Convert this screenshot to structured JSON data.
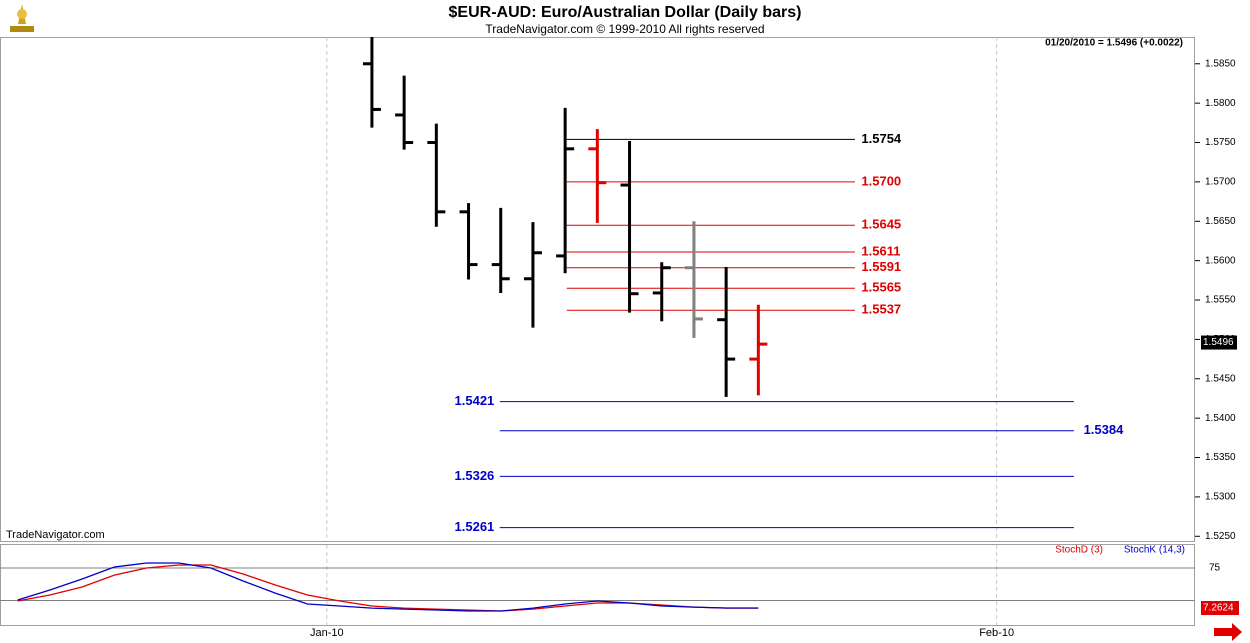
{
  "chart_data": {
    "type": "ohlc",
    "title": "$EUR-AUD:  Euro/Australian Dollar  (Daily bars)",
    "subtitle": "TradeNavigator.com © 1999-2010 All rights reserved",
    "watermark": "TradeNavigator.com",
    "info": "01/20/2010 = 1.5496 (+0.0022)",
    "last_price": 1.5496,
    "last_price_label": "1.5496",
    "xlim": [
      -11.55,
      25.56
    ],
    "xticks": [
      {
        "value": -1.4,
        "label": "Jan-10"
      },
      {
        "value": 19.4,
        "label": "Feb-10"
      }
    ],
    "ylim": [
      1.5244,
      1.5884
    ],
    "yticks": [
      {
        "value": 1.525,
        "label": "1.5250"
      },
      {
        "value": 1.53,
        "label": "1.5300"
      },
      {
        "value": 1.535,
        "label": "1.5350"
      },
      {
        "value": 1.54,
        "label": "1.5400"
      },
      {
        "value": 1.545,
        "label": "1.5450"
      },
      {
        "value": 1.55,
        "label": "1.5500"
      },
      {
        "value": 1.555,
        "label": "1.5550"
      },
      {
        "value": 1.56,
        "label": "1.5600"
      },
      {
        "value": 1.565,
        "label": "1.5650"
      },
      {
        "value": 1.57,
        "label": "1.5700"
      },
      {
        "value": 1.575,
        "label": "1.5750"
      },
      {
        "value": 1.58,
        "label": "1.5800"
      },
      {
        "value": 1.585,
        "label": "1.5850"
      }
    ],
    "bars": {
      "x": [
        0,
        1,
        2,
        3,
        4,
        5,
        6,
        7,
        8,
        9,
        10,
        11,
        12
      ],
      "open": [
        1.585,
        1.5785,
        1.575,
        1.5662,
        1.5595,
        1.5577,
        1.5606,
        1.5742,
        1.5696,
        1.5559,
        1.5591,
        1.5525,
        1.5475
      ],
      "high": [
        1.5884,
        1.5835,
        1.5774,
        1.5673,
        1.5667,
        1.5649,
        1.5794,
        1.5767,
        1.5752,
        1.5598,
        1.565,
        1.5592,
        1.5544
      ],
      "low": [
        1.5769,
        1.5741,
        1.5643,
        1.5576,
        1.5559,
        1.5515,
        1.5584,
        1.5648,
        1.5534,
        1.5523,
        1.5502,
        1.5427,
        1.5429
      ],
      "close": [
        1.5792,
        1.575,
        1.5662,
        1.5595,
        1.5577,
        1.561,
        1.5742,
        1.5699,
        1.5558,
        1.5591,
        1.5526,
        1.5475,
        1.5494
      ],
      "colors": [
        "#000000",
        "#000000",
        "#000000",
        "#000000",
        "#000000",
        "#000000",
        "#000000",
        "#e00000",
        "#000000",
        "#000000",
        "#808080",
        "#000000",
        "#e00000"
      ]
    },
    "resistance_levels": [
      {
        "values": [
          1.5754
        ],
        "value_labels": [
          "1.5754"
        ],
        "color": "#000000"
      },
      {
        "values": [
          1.57,
          1.5645,
          1.5611,
          1.5591,
          1.5565,
          1.5537
        ],
        "value_labels": [
          "1.5700",
          "1.5645",
          "1.5611",
          "1.5591",
          "1.5565",
          "1.5537"
        ],
        "color": "#e00000"
      }
    ],
    "support_levels": {
      "values": [
        1.5421,
        1.5384,
        1.5326,
        1.5261
      ],
      "value_labels": [
        "1.5421",
        "1.5384",
        "1.5326",
        "1.5261"
      ],
      "color": "#0000c8"
    },
    "stochastic": {
      "x": [
        -11,
        -10,
        -9,
        -8,
        -7,
        -6,
        -5,
        -4,
        -3,
        -2,
        -1,
        0,
        1,
        2,
        3,
        4,
        5,
        6,
        7,
        8,
        9,
        10,
        11,
        12
      ],
      "ylim": [
        -21.5,
        114
      ],
      "yticks": [
        75
      ],
      "reference_lines": [
        20
      ],
      "last_value": 7.2624,
      "last_label": "7.2624",
      "series": [
        {
          "name": "StochD (3)",
          "color": "#e00000",
          "values": [
            19.1,
            29.3,
            42.8,
            63.1,
            75,
            80.1,
            80.1,
            64.8,
            46.2,
            29.3,
            19.1,
            10.6,
            7.2,
            5.5,
            3.9,
            2.2,
            5.5,
            10.6,
            15.7,
            15.7,
            12.3,
            8.9,
            7.2,
            7.2
          ]
        },
        {
          "name": "StochK (14,3)",
          "color": "#0000c8",
          "values": [
            20.8,
            37.7,
            56.4,
            76.7,
            83.5,
            83.5,
            75,
            53,
            32.6,
            14,
            10.6,
            7.2,
            5.5,
            3.9,
            2.2,
            2.2,
            7.2,
            14,
            19.1,
            15.7,
            10.6,
            8.9,
            7.3,
            7.3
          ]
        }
      ]
    }
  }
}
